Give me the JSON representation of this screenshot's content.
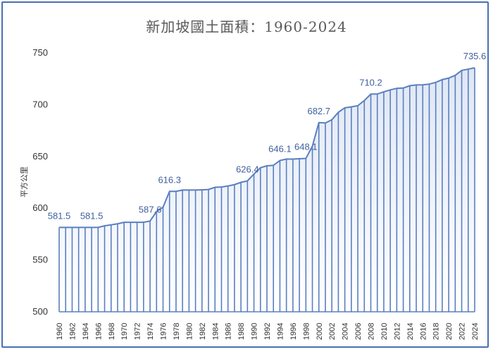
{
  "chart_data": {
    "type": "area",
    "title": "新加坡國土面積：1960-2024",
    "ylabel": "平方公里",
    "xlabel": "",
    "ylim": [
      500,
      750
    ],
    "yticks": [
      500,
      550,
      600,
      650,
      700,
      750
    ],
    "grid": false,
    "color": "#5a7fc0",
    "x": [
      1960,
      1961,
      1962,
      1963,
      1964,
      1965,
      1966,
      1967,
      1968,
      1969,
      1970,
      1971,
      1972,
      1973,
      1974,
      1975,
      1976,
      1977,
      1978,
      1979,
      1980,
      1981,
      1982,
      1983,
      1984,
      1985,
      1986,
      1987,
      1988,
      1989,
      1990,
      1991,
      1992,
      1993,
      1994,
      1995,
      1996,
      1997,
      1998,
      1999,
      2000,
      2001,
      2002,
      2003,
      2004,
      2005,
      2006,
      2007,
      2008,
      2009,
      2010,
      2011,
      2012,
      2013,
      2014,
      2015,
      2016,
      2017,
      2018,
      2019,
      2020,
      2021,
      2022,
      2023,
      2024
    ],
    "xtick_labels": [
      "1960",
      "1962",
      "1964",
      "1966",
      "1968",
      "1970",
      "1972",
      "1974",
      "1976",
      "1978",
      "1980",
      "1982",
      "1984",
      "1986",
      "1988",
      "1990",
      "1992",
      "1994",
      "1996",
      "1998",
      "2000",
      "2002",
      "2004",
      "2006",
      "2008",
      "2010",
      "2012",
      "2014",
      "2016",
      "2018",
      "2020",
      "2022",
      "2024"
    ],
    "values": [
      581.5,
      581.5,
      581.5,
      581.5,
      581.5,
      581.5,
      581.5,
      583.0,
      584.0,
      585.0,
      586.4,
      586.4,
      586.4,
      586.4,
      587.6,
      596.8,
      601.0,
      616.3,
      616.3,
      617.6,
      617.6,
      617.6,
      617.8,
      618.1,
      620.2,
      620.5,
      621.5,
      622.8,
      625.0,
      626.4,
      633.0,
      639.1,
      641.0,
      641.4,
      646.1,
      647.5,
      647.5,
      647.8,
      648.1,
      659.9,
      682.7,
      682.3,
      685.4,
      692.7,
      697.0,
      697.9,
      699.0,
      704.0,
      710.2,
      710.3,
      712.4,
      714.3,
      715.8,
      716.1,
      718.3,
      719.1,
      719.2,
      719.9,
      721.5,
      724.2,
      725.7,
      728.3,
      733.1,
      734.3,
      735.6
    ],
    "data_labels": [
      {
        "year": 1960,
        "text": "581.5"
      },
      {
        "year": 1965,
        "text": "581.5"
      },
      {
        "year": 1974,
        "text": "587.6"
      },
      {
        "year": 1977,
        "text": "616.3"
      },
      {
        "year": 1989,
        "text": "626.4"
      },
      {
        "year": 1994,
        "text": "646.1"
      },
      {
        "year": 1998,
        "text": "648.1"
      },
      {
        "year": 2000,
        "text": "682.7"
      },
      {
        "year": 2008,
        "text": "710.2"
      },
      {
        "year": 2024,
        "text": "735.6"
      }
    ]
  }
}
